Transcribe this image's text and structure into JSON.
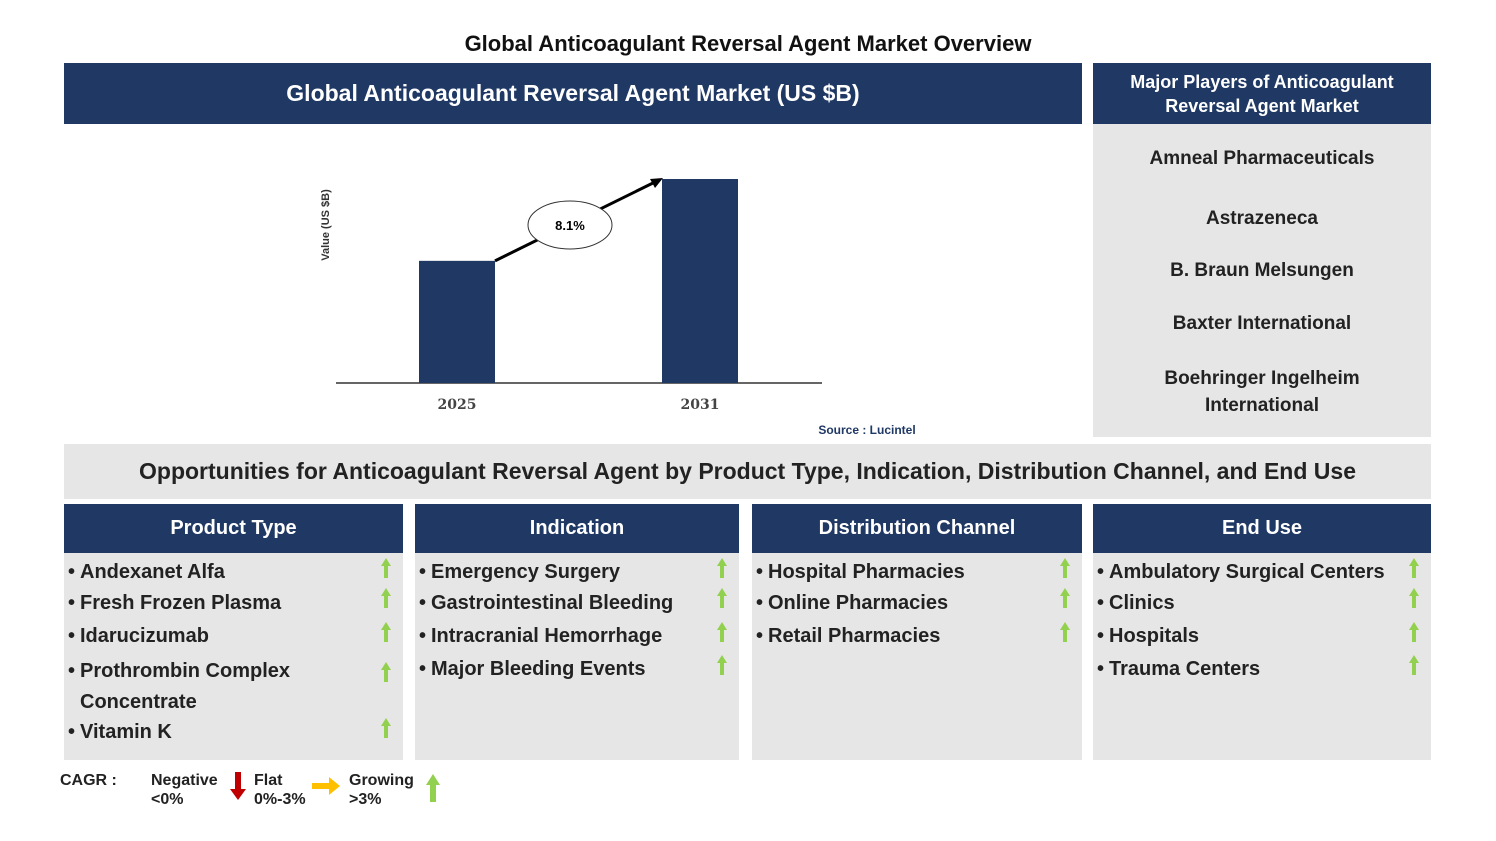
{
  "title": "Global Anticoagulant Reversal Agent Market Overview",
  "chart_panel": {
    "header": "Global Anticoagulant Reversal Agent Market (US $B)",
    "source": "Source : Lucintel"
  },
  "chart_data": {
    "type": "bar",
    "categories": [
      "2025",
      "2031"
    ],
    "values": [
      1.0,
      1.67
    ],
    "ylabel": "Value (US $B)",
    "ylim": [
      0,
      1.7
    ],
    "annotation": "8.1%",
    "bar_color": "#1f3864",
    "grid": false
  },
  "players": {
    "header": "Major Players of Anticoagulant Reversal Agent Market",
    "items": [
      "Amneal Pharmaceuticals",
      "Astrazeneca",
      "B. Braun Melsungen",
      "Baxter International",
      "Boehringer Ingelheim International"
    ]
  },
  "opportunities": {
    "header": "Opportunities for Anticoagulant Reversal Agent by Product Type, Indication, Distribution Channel, and End Use"
  },
  "columns": [
    {
      "title": "Product Type",
      "items": [
        "Andexanet Alfa",
        "Fresh Frozen Plasma",
        "Idarucizumab",
        "Prothrombin Complex Concentrate",
        "Vitamin K"
      ],
      "trend": "growing"
    },
    {
      "title": "Indication",
      "items": [
        "Emergency Surgery",
        "Gastrointestinal Bleeding",
        "Intracranial Hemorrhage",
        "Major Bleeding Events"
      ],
      "trend": "growing"
    },
    {
      "title": "Distribution Channel",
      "items": [
        "Hospital Pharmacies",
        "Online Pharmacies",
        "Retail Pharmacies"
      ],
      "trend": "growing"
    },
    {
      "title": "End Use",
      "items": [
        "Ambulatory Surgical Centers",
        "Clinics",
        "Hospitals",
        "Trauma Centers"
      ],
      "trend": "growing"
    }
  ],
  "legend": {
    "label": "CAGR :",
    "negative": "Negative",
    "negative_range": "<0%",
    "flat": "Flat",
    "flat_range": "0%-3%",
    "growing": "Growing",
    "growing_range": ">3%",
    "colors": {
      "negative": "#c00000",
      "flat": "#ffc000",
      "growing": "#92d050"
    }
  }
}
